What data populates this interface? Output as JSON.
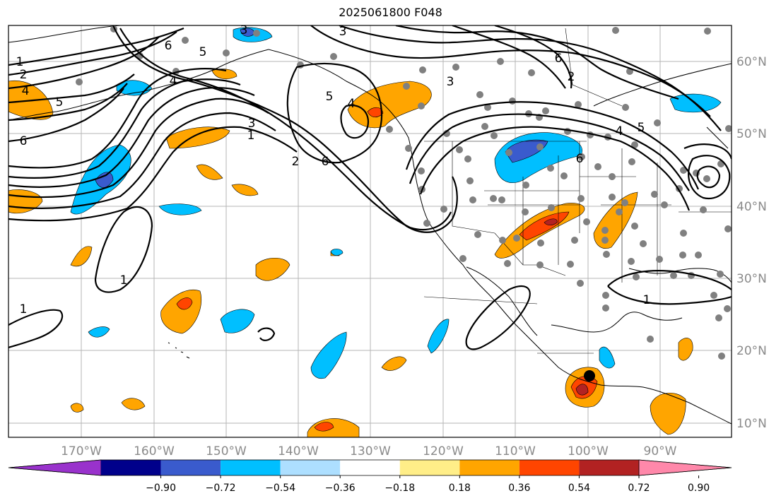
{
  "title": "2025061800 F048",
  "lon_labels": [
    "170°W",
    "160°W",
    "150°W",
    "140°W",
    "130°W",
    "120°W",
    "110°W",
    "100°W",
    "90°W"
  ],
  "lat_labels": [
    "60°N",
    "50°N",
    "40°N",
    "30°N",
    "20°N",
    "10°N"
  ],
  "colorbar": {
    "colors": [
      "#9932cc",
      "#00008b",
      "#3a5bcd",
      "#00bfff",
      "#addfff",
      "#ffffff",
      "#ffee88",
      "#ffa500",
      "#ff4500",
      "#b22222",
      "#ff88aa"
    ],
    "tick_labels": [
      "−0.90",
      "−0.72",
      "−0.54",
      "−0.36",
      "−0.18",
      "0.18",
      "0.36",
      "0.54",
      "0.72",
      "0.90"
    ]
  },
  "contour_labels": [
    "1",
    "2",
    "3",
    "4",
    "5",
    "6",
    "6",
    "5",
    "4",
    "3",
    "2",
    "1",
    "3",
    "6",
    "5",
    "4",
    "3",
    "6",
    "5",
    "4",
    "1",
    "1",
    "1",
    "2",
    "6"
  ]
}
